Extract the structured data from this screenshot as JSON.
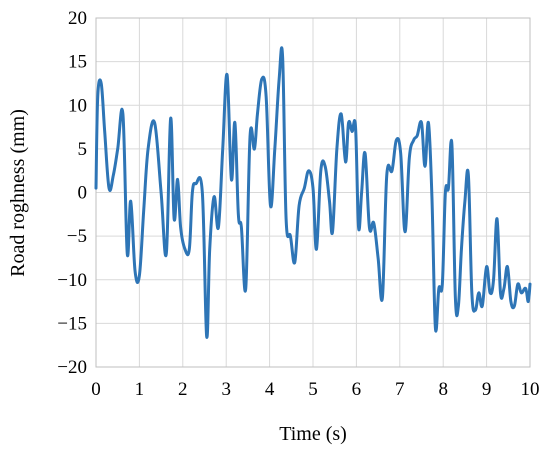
{
  "chart_data": {
    "type": "line",
    "xlabel": "Time (s)",
    "ylabel": "Road roghness (mm)",
    "xlim": [
      0,
      10
    ],
    "ylim": [
      -20,
      20
    ],
    "x_ticks": [
      "0",
      "1",
      "2",
      "3",
      "4",
      "5",
      "6",
      "7",
      "8",
      "9",
      "10"
    ],
    "y_ticks": [
      "20",
      "15",
      "10",
      "5",
      "0",
      "−5",
      "−10",
      "−15",
      "−20"
    ],
    "grid": true,
    "line_color": "#2e75b6",
    "series": [
      {
        "x": [
          0.0,
          0.04,
          0.12,
          0.2,
          0.3,
          0.4,
          0.5,
          0.62,
          0.72,
          0.8,
          0.9,
          1.0,
          1.1,
          1.2,
          1.35,
          1.5,
          1.62,
          1.72,
          1.8,
          1.88,
          1.95,
          2.05,
          2.15,
          2.22,
          2.3,
          2.45,
          2.55,
          2.62,
          2.72,
          2.82,
          2.92,
          3.02,
          3.12,
          3.2,
          3.28,
          3.35,
          3.45,
          3.55,
          3.65,
          3.72,
          3.82,
          3.92,
          4.02,
          4.12,
          4.22,
          4.3,
          4.38,
          4.48,
          4.58,
          4.68,
          4.8,
          4.9,
          5.0,
          5.08,
          5.18,
          5.28,
          5.38,
          5.45,
          5.55,
          5.65,
          5.75,
          5.82,
          5.9,
          5.98,
          6.05,
          6.12,
          6.2,
          6.3,
          6.4,
          6.5,
          6.6,
          6.7,
          6.82,
          6.92,
          7.02,
          7.12,
          7.22,
          7.32,
          7.4,
          7.5,
          7.58,
          7.66,
          7.74,
          7.82,
          7.9,
          7.98,
          8.05,
          8.12,
          8.2,
          8.28,
          8.35,
          8.42,
          8.5,
          8.58,
          8.66,
          8.74,
          8.82,
          8.9,
          9.0,
          9.08,
          9.16,
          9.24,
          9.32,
          9.4,
          9.48,
          9.56,
          9.64,
          9.72,
          9.8,
          9.9,
          9.96,
          10.0
        ],
        "y": [
          0.5,
          11.0,
          12.5,
          7.0,
          0.5,
          2.0,
          5.0,
          9.0,
          -7.0,
          -1.0,
          -9.0,
          -9.5,
          -2.0,
          5.0,
          8.0,
          0.0,
          -7.0,
          8.5,
          -3.0,
          1.5,
          -4.0,
          -6.5,
          -6.5,
          0.0,
          1.0,
          0.0,
          -16.5,
          -6.5,
          -0.5,
          -4.0,
          5.0,
          13.5,
          1.5,
          8.0,
          -2.5,
          -4.0,
          -11.0,
          6.5,
          5.0,
          9.0,
          13.0,
          11.0,
          -1.5,
          5.0,
          13.0,
          15.5,
          -3.0,
          -5.0,
          -8.0,
          -1.5,
          0.5,
          2.5,
          0.5,
          -6.5,
          2.5,
          3.0,
          -1.0,
          -4.5,
          5.0,
          9.0,
          3.5,
          8.0,
          7.0,
          7.5,
          -4.0,
          0.0,
          4.5,
          -4.0,
          -3.5,
          -7.5,
          -12.0,
          2.0,
          2.5,
          6.0,
          4.5,
          -4.5,
          4.0,
          6.0,
          6.5,
          8.0,
          3.0,
          8.0,
          -0.5,
          -15.5,
          -11.0,
          -10.5,
          0.0,
          0.5,
          5.5,
          -12.0,
          -13.0,
          -6.5,
          -1.0,
          2.0,
          -11.5,
          -13.5,
          -11.5,
          -13.0,
          -8.5,
          -11.5,
          -10.0,
          -3.0,
          -11.5,
          -11.0,
          -8.5,
          -12.5,
          -13.0,
          -10.5,
          -11.5,
          -11.0,
          -12.5,
          -10.5
        ]
      }
    ]
  }
}
